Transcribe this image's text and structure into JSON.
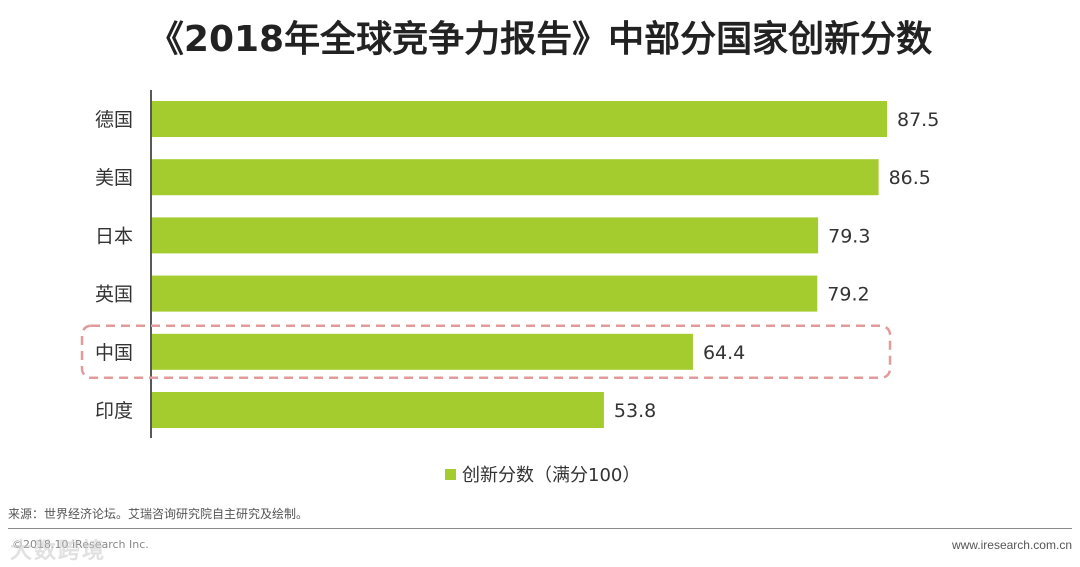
{
  "title": "《2018年全球竞争力报告》中部分国家创新分数",
  "chart_data": {
    "type": "bar",
    "orientation": "horizontal",
    "categories": [
      "德国",
      "美国",
      "日本",
      "英国",
      "中国",
      "印度"
    ],
    "series": [
      {
        "name": "创新分数（满分100）",
        "values": [
          87.5,
          86.5,
          79.3,
          79.2,
          64.4,
          53.8
        ]
      }
    ],
    "highlight_category": "中国",
    "xlim": [
      0,
      100
    ],
    "grid": false,
    "legend_position": "bottom",
    "bar_color": "#a4cc2e",
    "highlight_color": "#e29a9a"
  },
  "source": "来源：世界经济论坛。艾瑞咨询研究院自主研究及绘制。",
  "copyright": "©2018.10 iResearch Inc.",
  "watermark": "大数跨境",
  "website": "www.iresearch.com.cn"
}
